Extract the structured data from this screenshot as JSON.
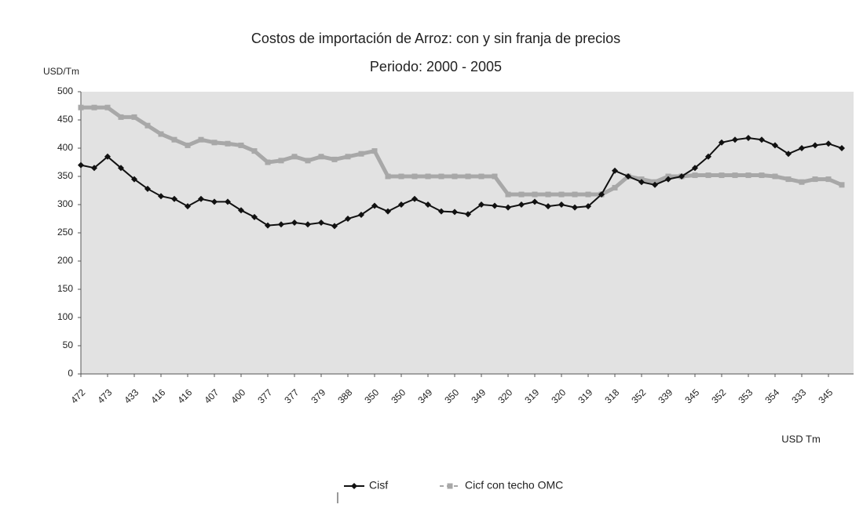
{
  "chart_data": {
    "type": "line",
    "title": "Costos de importación de Arroz: con y sin franja de precios",
    "subtitle": "Periodo: 2000 - 2005",
    "y_label": "USD/Tm",
    "x_label": "USD Tm",
    "categories": [
      "472",
      null,
      "473",
      null,
      "433",
      null,
      "416",
      null,
      "416",
      null,
      "407",
      null,
      "400",
      null,
      "377",
      null,
      "377",
      null,
      "379",
      null,
      "388",
      null,
      "350",
      null,
      "350",
      null,
      "349",
      null,
      "350",
      null,
      "349",
      null,
      "320",
      null,
      "319",
      null,
      "320",
      null,
      "319",
      null,
      "318",
      null,
      "352",
      null,
      "339",
      null,
      "345",
      null,
      "352",
      null,
      "353",
      null,
      "354",
      null,
      "333",
      null,
      "345",
      null
    ],
    "series": [
      {
        "name": "Cisf",
        "color": "#111111",
        "marker": "diamond",
        "values": [
          370,
          365,
          385,
          365,
          345,
          328,
          315,
          310,
          297,
          310,
          305,
          305,
          290,
          278,
          263,
          265,
          268,
          265,
          268,
          262,
          275,
          282,
          298,
          288,
          300,
          310,
          300,
          288,
          287,
          283,
          300,
          298,
          295,
          300,
          305,
          297,
          300,
          295,
          297,
          318,
          360,
          350,
          340,
          335,
          345,
          350,
          365,
          385,
          410,
          415,
          418,
          415,
          405,
          390,
          400,
          405,
          408,
          400
        ]
      },
      {
        "name": "Cicf con techo OMC",
        "color": "#a8a8a8",
        "marker": "square",
        "values": [
          472,
          472,
          472,
          455,
          455,
          440,
          425,
          415,
          405,
          415,
          410,
          408,
          405,
          395,
          375,
          378,
          385,
          378,
          385,
          380,
          385,
          390,
          395,
          350,
          350,
          350,
          350,
          350,
          350,
          350,
          350,
          350,
          318,
          318,
          318,
          318,
          318,
          318,
          318,
          318,
          330,
          350,
          345,
          340,
          350,
          350,
          352,
          352,
          352,
          352,
          352,
          352,
          350,
          345,
          340,
          345,
          345,
          335
        ]
      }
    ],
    "ylim": [
      0,
      500
    ],
    "yticks": [
      0,
      50,
      100,
      150,
      200,
      250,
      300,
      350,
      400,
      450,
      500
    ]
  }
}
